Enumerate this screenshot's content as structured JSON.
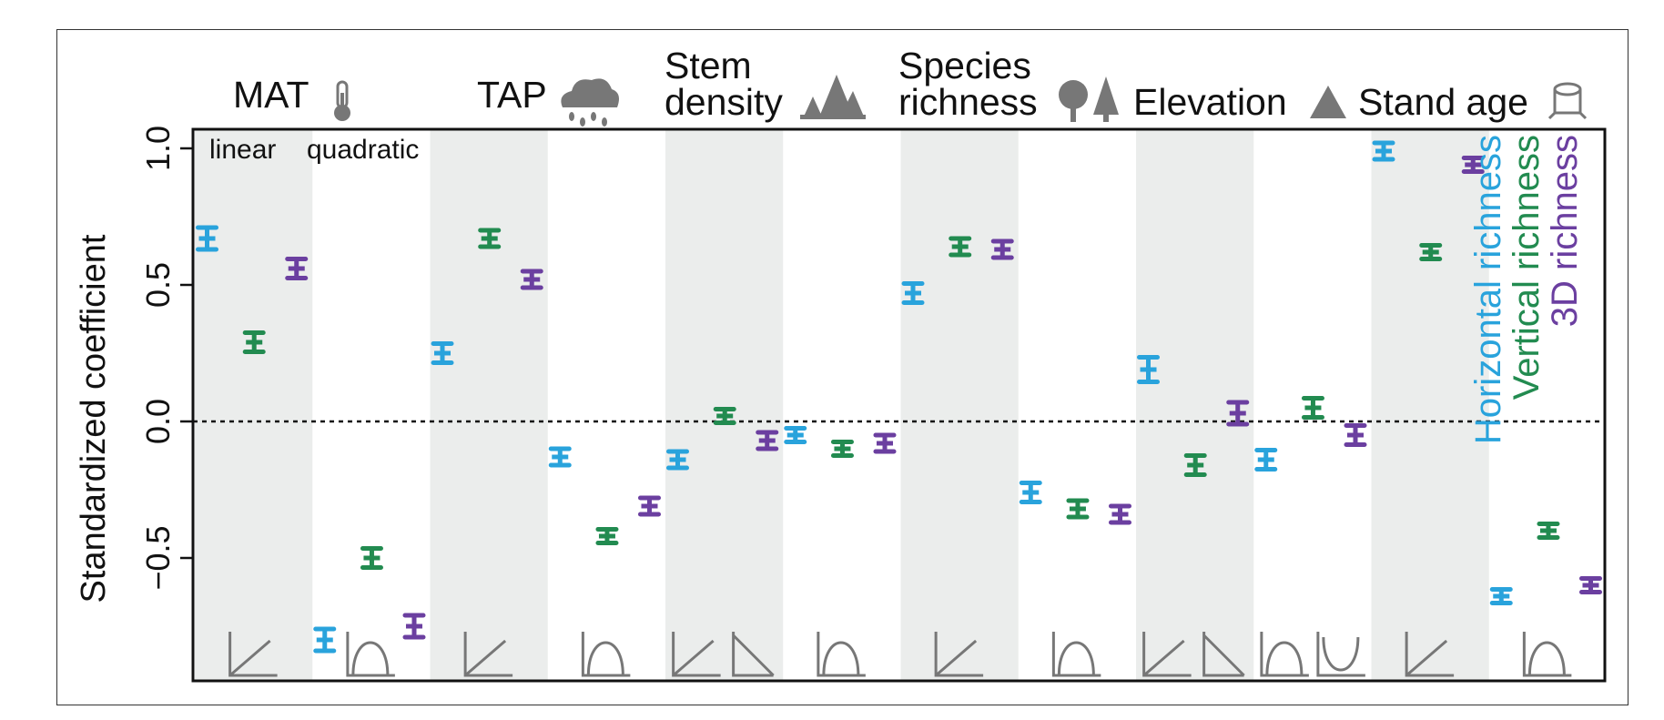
{
  "chart_data": {
    "type": "scatter",
    "ylabel": "Standardized coefficient",
    "ylim": [
      -0.95,
      1.07
    ],
    "yticks": [
      {
        "value": 1.0,
        "label": "1.0"
      },
      {
        "value": 0.5,
        "label": "0.5"
      },
      {
        "value": 0.0,
        "label": "0.0"
      },
      {
        "value": -0.5,
        "label": "−0.5"
      }
    ],
    "reference_line": 0.0,
    "panel_labels": [
      "linear",
      "quadratic"
    ],
    "groups": [
      {
        "name": "MAT",
        "name_lines": [
          "MAT"
        ],
        "icon": "thermometer-icon"
      },
      {
        "name": "TAP",
        "name_lines": [
          "TAP"
        ],
        "icon": "rain-cloud-icon"
      },
      {
        "name": "Stem density",
        "name_lines": [
          "Stem",
          "density"
        ],
        "icon": "forest-icon"
      },
      {
        "name": "Species richness",
        "name_lines": [
          "Species",
          "richness"
        ],
        "icon": "trees-icon"
      },
      {
        "name": "Elevation",
        "name_lines": [
          "Elevation"
        ],
        "icon": "mountain-icon"
      },
      {
        "name": "Stand age",
        "name_lines": [
          "Stand age"
        ],
        "icon": "tree-stump-icon"
      }
    ],
    "categories": [
      "MAT linear",
      "MAT quadratic",
      "TAP linear",
      "TAP quadratic",
      "Stem density linear",
      "Stem density quadratic",
      "Species richness linear",
      "Species richness quadratic",
      "Elevation linear",
      "Elevation quadratic",
      "Stand age linear",
      "Stand age quadratic"
    ],
    "shape_icons": [
      [
        "linear-increase"
      ],
      [
        "hump"
      ],
      [
        "linear-increase"
      ],
      [
        "hump"
      ],
      [
        "linear-increase",
        "linear-decrease"
      ],
      [
        "hump"
      ],
      [
        "linear-increase"
      ],
      [
        "hump"
      ],
      [
        "linear-increase",
        "linear-decrease"
      ],
      [
        "hump",
        "u-shape"
      ],
      [
        "linear-increase"
      ],
      [
        "hump"
      ]
    ],
    "series": [
      {
        "name": "Horizontal richness",
        "color": "#29a3dc",
        "values": [
          0.67,
          -0.8,
          0.25,
          -0.13,
          -0.14,
          -0.05,
          0.47,
          -0.26,
          0.19,
          -0.14,
          0.99,
          -0.64
        ],
        "ci": [
          0.03,
          0.03,
          0.025,
          0.02,
          0.02,
          0.015,
          0.025,
          0.025,
          0.035,
          0.025,
          0.02,
          0.015
        ]
      },
      {
        "name": "Vertical richness",
        "color": "#228b50",
        "values": [
          0.29,
          -0.5,
          0.67,
          -0.42,
          0.02,
          -0.1,
          0.64,
          -0.32,
          -0.16,
          0.05,
          0.62,
          -0.4
        ],
        "ci": [
          0.025,
          0.025,
          0.02,
          0.015,
          0.015,
          0.015,
          0.02,
          0.02,
          0.025,
          0.025,
          0.015,
          0.015
        ]
      },
      {
        "name": "3D richness",
        "color": "#6b3fa0",
        "values": [
          0.56,
          -0.75,
          0.52,
          -0.31,
          -0.07,
          -0.08,
          0.63,
          -0.34,
          0.03,
          -0.05,
          0.94,
          -0.6
        ],
        "ci": [
          0.025,
          0.03,
          0.02,
          0.02,
          0.02,
          0.02,
          0.02,
          0.02,
          0.03,
          0.025,
          0.015,
          0.015
        ]
      }
    ],
    "legend_position": "right-inside-rotated",
    "panel_shading": "#ebedec"
  }
}
